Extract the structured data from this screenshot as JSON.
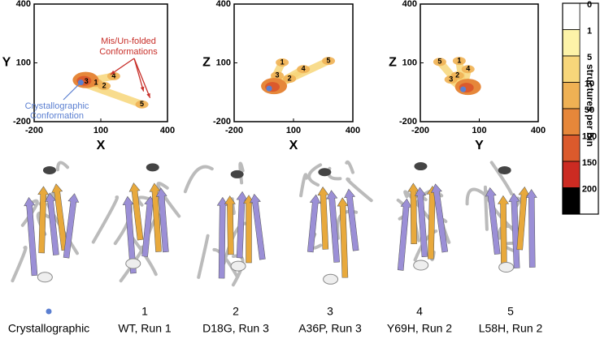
{
  "panels": [
    {
      "xlabel": "X",
      "ylabel": "Y",
      "xlim": [
        -200,
        400
      ],
      "ylim": [
        -200,
        400
      ],
      "xticks": [
        -200,
        100,
        400
      ],
      "yticks": [
        -200,
        100,
        400
      ],
      "crystal": [
        10,
        0
      ],
      "points": [
        {
          "label": "1",
          "x": 78,
          "y": -2
        },
        {
          "label": "2",
          "x": 115,
          "y": -18
        },
        {
          "label": "3",
          "x": 35,
          "y": 5
        },
        {
          "label": "4",
          "x": 158,
          "y": 32
        },
        {
          "label": "5",
          "x": 285,
          "y": -112
        }
      ]
    },
    {
      "xlabel": "X",
      "ylabel": "Z",
      "xlim": [
        -200,
        400
      ],
      "ylim": [
        -200,
        400
      ],
      "xticks": [
        -200,
        100,
        400
      ],
      "yticks": [
        -200,
        100,
        400
      ],
      "crystal": [
        -23,
        -31
      ],
      "points": [
        {
          "label": "1",
          "x": 43,
          "y": 102
        },
        {
          "label": "2",
          "x": 80,
          "y": 19
        },
        {
          "label": "3",
          "x": 18,
          "y": 35
        },
        {
          "label": "4",
          "x": 150,
          "y": 68
        },
        {
          "label": "5",
          "x": 277,
          "y": 110
        }
      ]
    },
    {
      "xlabel": "Y",
      "ylabel": "Z",
      "xlim": [
        -200,
        400
      ],
      "ylim": [
        -200,
        400
      ],
      "xticks": [
        -200,
        100,
        400
      ],
      "yticks": [
        -200,
        100,
        400
      ],
      "crystal": [
        18,
        -35
      ],
      "points": [
        {
          "label": "1",
          "x": -2,
          "y": 110
        },
        {
          "label": "2",
          "x": -11,
          "y": 35
        },
        {
          "label": "3",
          "x": -44,
          "y": 15
        },
        {
          "label": "4",
          "x": 43,
          "y": 68
        },
        {
          "label": "5",
          "x": -101,
          "y": 105
        }
      ]
    }
  ],
  "annotations": {
    "misfolded": [
      "Mis/Un-folded",
      "Conformations"
    ],
    "crystal": [
      "Crystallographic",
      "Conformation"
    ]
  },
  "colorbar": {
    "title": "structures per bin",
    "ticks": [
      0,
      1,
      5,
      10,
      50,
      100,
      150,
      200
    ],
    "colors": [
      "#ffffff",
      "#fdf3a8",
      "#f7d67a",
      "#efb154",
      "#e6873a",
      "#db5a2c",
      "#cc2b22",
      "#000000"
    ]
  },
  "crystal_color": "#5b7fd1",
  "crystal_caption": "Crystallographic",
  "structures": [
    {
      "number": "1",
      "caption": "WT, Run 1"
    },
    {
      "number": "2",
      "caption": "D18G, Run 3"
    },
    {
      "number": "3",
      "caption": "A36P, Run 3"
    },
    {
      "number": "4",
      "caption": "Y69H, Run 2"
    },
    {
      "number": "5",
      "caption": "L58H, Run 2"
    }
  ]
}
